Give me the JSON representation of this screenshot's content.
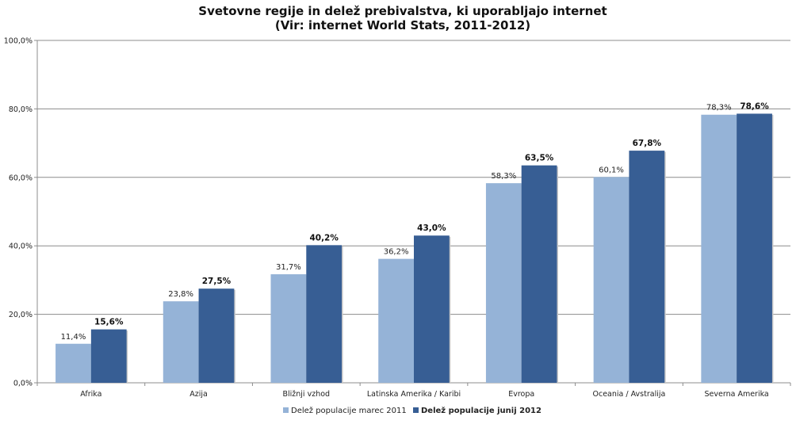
{
  "chart_data": {
    "type": "bar",
    "title_line1": "Svetovne regije in delež prebivalstva, ki uporabljajo internet",
    "title_line2": "(Vir: internet World Stats, 2011-2012)",
    "categories": [
      "Afrika",
      "Azija",
      "Bližnji vzhod",
      "Latinska Amerika / Karibi",
      "Evropa",
      "Oceania / Avstralija",
      "Severna Amerika"
    ],
    "series": [
      {
        "name": "Delež populacije marec 2011",
        "values": [
          11.4,
          23.8,
          31.7,
          36.2,
          58.3,
          60.1,
          78.3
        ],
        "labels": [
          "11,4%",
          "23,8%",
          "31,7%",
          "36,2%",
          "58,3%",
          "60,1%",
          "78,3%"
        ],
        "color": "#95b3d7",
        "bold": false
      },
      {
        "name": "Delež populacije junij 2012",
        "values": [
          15.6,
          27.5,
          40.2,
          43.0,
          63.5,
          67.8,
          78.6
        ],
        "labels": [
          "15,6%",
          "27,5%",
          "40,2%",
          "43,0%",
          "63,5%",
          "67,8%",
          "78,6%"
        ],
        "color": "#375e94",
        "bold": true
      }
    ],
    "ylim": [
      0,
      100
    ],
    "yticks": [
      0,
      20,
      40,
      60,
      80,
      100
    ],
    "ytick_labels": [
      "0,0%",
      "20,0%",
      "40,0%",
      "60,0%",
      "80,0%",
      "100,0%"
    ],
    "grid": true,
    "legend_position": "bottom"
  }
}
